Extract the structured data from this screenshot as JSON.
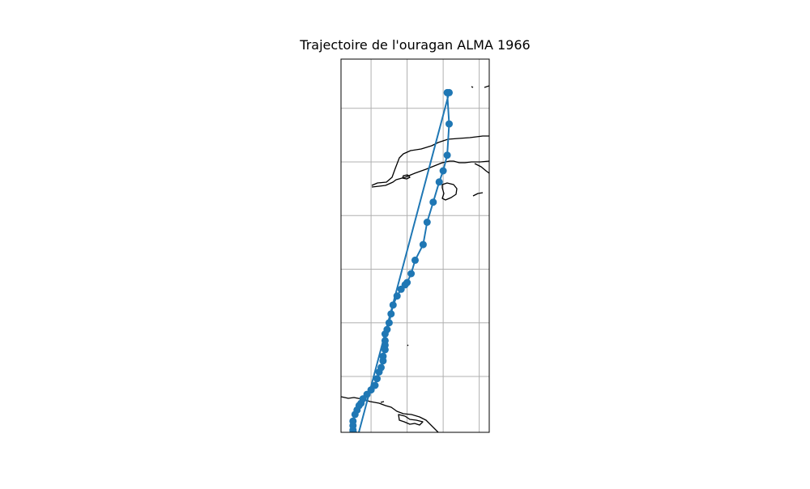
{
  "chart_data": {
    "type": "line",
    "title": "Trajectoire de l'ouragan ALMA 1966",
    "xlabel": "",
    "ylabel": "",
    "xlim": [
      -86.1,
      -78.7
    ],
    "ylim": [
      9.9,
      26.6
    ],
    "grid": true,
    "series_color": "#1f77b4",
    "marker": "circle",
    "series": [
      {
        "x": [
          -80.8,
          -80.7,
          -80.8,
          -81.0,
          -81.2,
          -81.5,
          -81.8,
          -82.0,
          -82.4,
          -82.6,
          -82.8,
          -82.9,
          -83.1,
          -83.3,
          -83.5,
          -83.6,
          -83.7,
          -83.8,
          -83.9,
          -83.9,
          -83.9,
          -83.9,
          -84.0,
          -84.0,
          -84.1,
          -84.2,
          -84.3,
          -84.4,
          -84.6,
          -84.8,
          -85.0,
          -85.1,
          -85.2,
          -85.3,
          -85.4,
          -85.5,
          -85.5,
          -85.5,
          -85.5,
          -85.4,
          -85.3,
          -80.7
        ],
        "y": [
          25.1,
          23.7,
          22.3,
          21.6,
          21.1,
          20.2,
          19.3,
          18.3,
          17.6,
          17.0,
          16.6,
          16.5,
          16.3,
          16.0,
          15.6,
          15.2,
          14.8,
          14.5,
          14.3,
          14.0,
          13.8,
          13.6,
          13.3,
          13.1,
          12.8,
          12.6,
          12.3,
          12.0,
          11.8,
          11.6,
          11.4,
          11.2,
          11.1,
          10.9,
          10.7,
          10.4,
          10.2,
          10.0,
          9.9,
          9.8,
          9.6,
          25.1
        ]
      }
    ]
  }
}
